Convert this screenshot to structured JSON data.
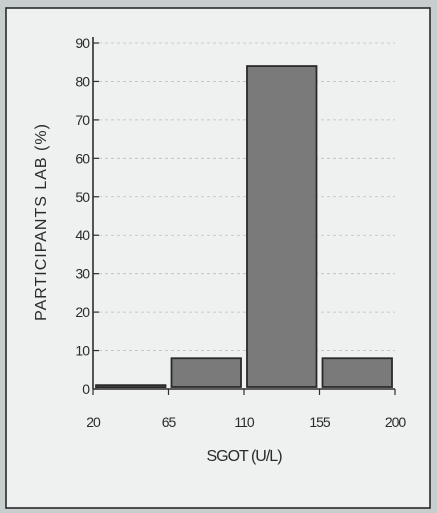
{
  "chart_data": {
    "type": "bar",
    "title": "",
    "xlabel": "SGOT (U/L)",
    "ylabel": "PARTICIPANTS LAB (%)",
    "bin_edges": [
      20,
      65,
      110,
      155,
      200
    ],
    "values": [
      1,
      8,
      84,
      8
    ],
    "xlim": [
      20,
      200
    ],
    "ylim": [
      0,
      90
    ],
    "x_ticks": [
      "20",
      "65",
      "110",
      "155",
      "200"
    ],
    "y_ticks": [
      "0",
      "10",
      "20",
      "30",
      "40",
      "50",
      "60",
      "70",
      "80",
      "90"
    ],
    "grid": true,
    "legend": "none",
    "bar_color": "#7a7a7a",
    "background_color": "#eef1ef"
  }
}
